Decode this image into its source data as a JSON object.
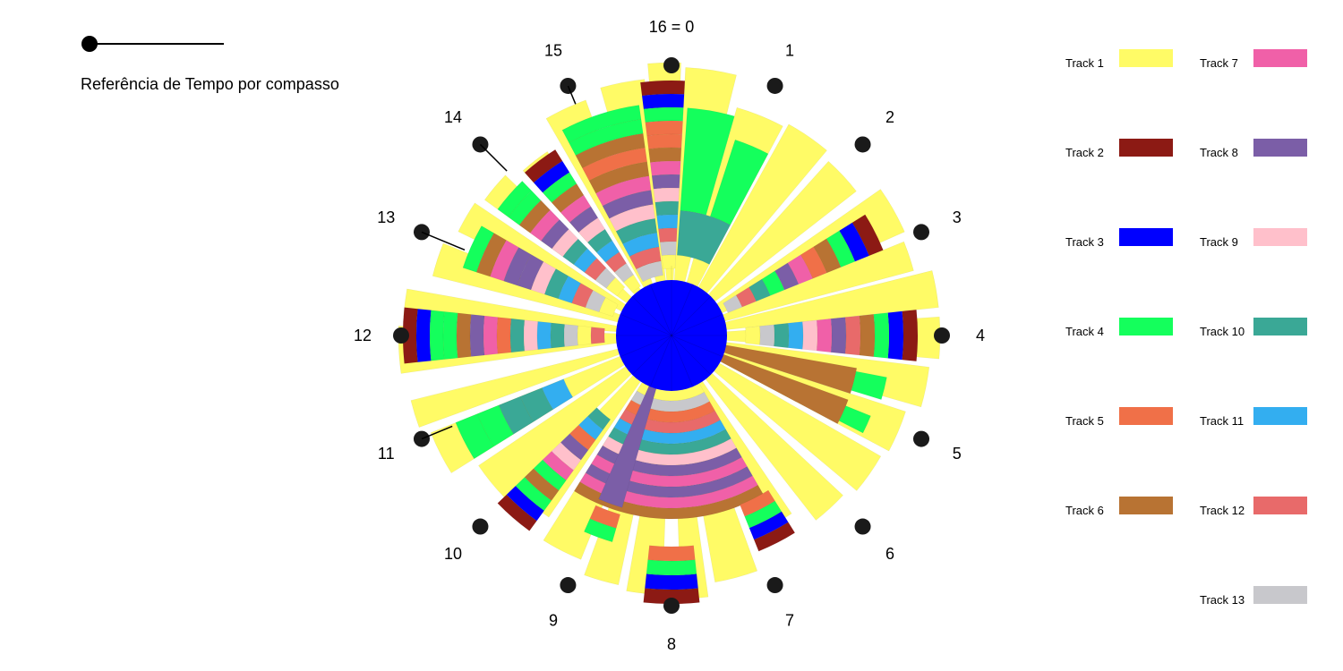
{
  "chart_data": {
    "type": "radial-timeline",
    "reference_label": "Referência de Tempo por compasso",
    "clock_labels": [
      "16 = 0",
      "1",
      "2",
      "3",
      "4",
      "5",
      "6",
      "7",
      "8",
      "9",
      "10",
      "11",
      "12",
      "13",
      "14",
      "15"
    ],
    "tracks": [
      {
        "name": "Track 1",
        "color": "#FFFB66"
      },
      {
        "name": "Track 2",
        "color": "#8C1A14"
      },
      {
        "name": "Track 3",
        "color": "#0000FF"
      },
      {
        "name": "Track 4",
        "color": "#14FF5C"
      },
      {
        "name": "Track 5",
        "color": "#F07048"
      },
      {
        "name": "Track 6",
        "color": "#B87333"
      },
      {
        "name": "Track 7",
        "color": "#F060A8"
      },
      {
        "name": "Track 8",
        "color": "#7B5EA7"
      },
      {
        "name": "Track 9",
        "color": "#FFC0CB"
      },
      {
        "name": "Track 10",
        "color": "#3AA896"
      },
      {
        "name": "Track 11",
        "color": "#33AEF0"
      },
      {
        "name": "Track 12",
        "color": "#E86A6A"
      },
      {
        "name": "Track 13",
        "color": "#C8C8CC"
      }
    ]
  }
}
